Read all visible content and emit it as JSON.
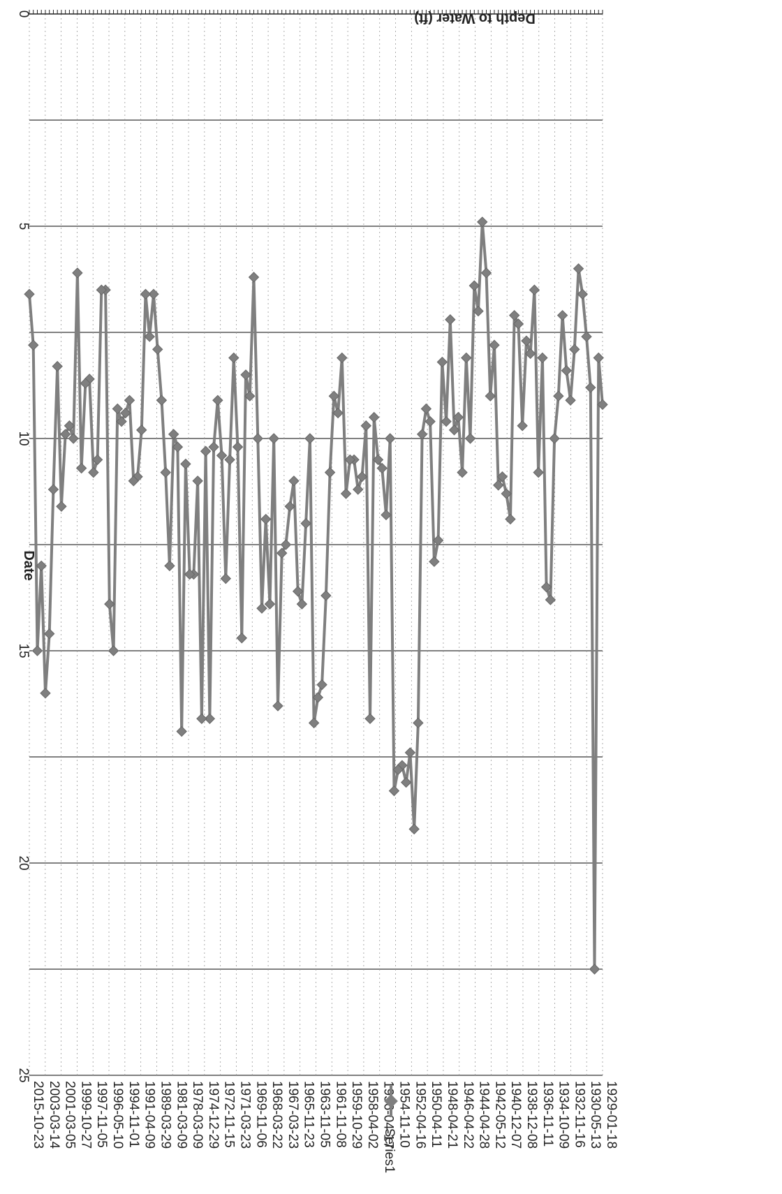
{
  "chart_data": {
    "type": "line",
    "orientation": "rotated-180",
    "xlabel": "Date",
    "ylabel": "Depth to Water (ft)",
    "ylim": [
      0,
      25
    ],
    "y_ticks": [
      "0",
      "5",
      "10",
      "15",
      "20",
      "25"
    ],
    "x_tick_labels": [
      "1929-01-18",
      "1930-05-13",
      "1932-11-16",
      "1934-10-09",
      "1936-11-11",
      "1938-12-08",
      "1940-12-07",
      "1942-05-12",
      "1944-04-28",
      "1946-04-22",
      "1948-04-21",
      "1950-04-11",
      "1952-04-16",
      "1954-11-10",
      "1956-04-17",
      "1958-04-02",
      "1959-10-29",
      "1961-11-08",
      "1963-11-05",
      "1965-11-23",
      "1967-03-23",
      "1968-03-22",
      "1969-11-06",
      "1971-03-23",
      "1972-11-15",
      "1974-12-29",
      "1978-03-09",
      "1981-03-09",
      "1989-03-29",
      "1991-04-09",
      "1994-11-01",
      "1996-05-10",
      "1997-11-05",
      "1999-10-27",
      "2001-03-05",
      "2003-03-14",
      "2015-10-23"
    ],
    "grid": true,
    "legend": "top-right",
    "colors": {
      "series": "#7f7f7f",
      "grid": "#000000"
    },
    "series": [
      {
        "name": "Series1",
        "marker": "diamond",
        "values": [
          9.2,
          8.1,
          22.5,
          8.8,
          7.6,
          6.6,
          6.0,
          7.9,
          9.1,
          8.4,
          7.1,
          9.0,
          10.0,
          13.8,
          13.5,
          8.1,
          10.8,
          6.5,
          8.0,
          7.7,
          9.7,
          7.3,
          7.1,
          11.9,
          11.3,
          10.9,
          11.1,
          7.8,
          9.0,
          6.1,
          4.9,
          7.0,
          6.4,
          10.0,
          8.1,
          10.8,
          9.5,
          9.8,
          7.2,
          9.6,
          8.2,
          12.4,
          12.9,
          9.6,
          9.3,
          9.9,
          16.7,
          19.2,
          17.4,
          18.1,
          17.7,
          17.8,
          18.3,
          10.0,
          11.8,
          10.7,
          10.5,
          9.5,
          16.6,
          9.7,
          10.9,
          11.2,
          10.5,
          10.5,
          11.3,
          8.1,
          9.4,
          9.0,
          10.8,
          13.7,
          15.8,
          16.1,
          16.7,
          10.0,
          12.0,
          13.9,
          13.6,
          11.0,
          11.6,
          12.5,
          12.7,
          16.3,
          10.0,
          13.9,
          11.9,
          14.0,
          10.0,
          6.2,
          9.0,
          8.5,
          14.7,
          10.2,
          8.1,
          10.5,
          13.3,
          10.4,
          9.1,
          10.2,
          16.6,
          10.3,
          16.6,
          11.0,
          13.2,
          13.2,
          10.6,
          16.9,
          10.2,
          9.9,
          13.0,
          10.8,
          9.1,
          7.9,
          6.6,
          7.6,
          6.6,
          9.8,
          10.9,
          11.0,
          9.1,
          9.4,
          9.6,
          9.3,
          15.0,
          13.9,
          6.5,
          6.5,
          10.5,
          10.8,
          8.6,
          8.7,
          10.7,
          6.1,
          10.0,
          9.7,
          9.9,
          11.6,
          8.3,
          11.2,
          14.6,
          16.0,
          13.0,
          15.0,
          7.8,
          6.6
        ]
      }
    ]
  }
}
